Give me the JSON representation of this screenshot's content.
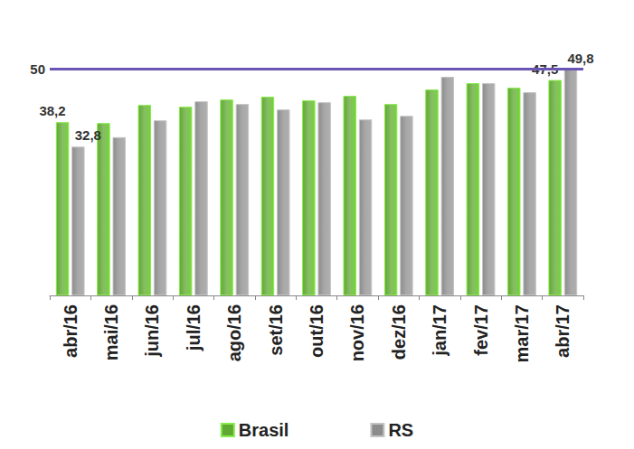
{
  "chart_data": {
    "type": "bar",
    "categories": [
      "abr/16",
      "mai/16",
      "jun/16",
      "jul/16",
      "ago/16",
      "set/16",
      "out/16",
      "nov/16",
      "dez/16",
      "jan/17",
      "fev/17",
      "mar/17",
      "abr/17"
    ],
    "series": [
      {
        "name": "Brasil",
        "color": "#5fa832",
        "values": [
          38.2,
          38.0,
          42.0,
          41.6,
          43.2,
          43.8,
          43.0,
          44.0,
          42.2,
          45.4,
          46.8,
          45.8,
          47.5
        ],
        "value_labels": [
          "38,2",
          null,
          null,
          null,
          null,
          null,
          null,
          null,
          null,
          null,
          null,
          null,
          "47,5"
        ]
      },
      {
        "name": "RS",
        "color": "#8c8c8c",
        "values": [
          32.8,
          34.9,
          38.6,
          42.8,
          42.2,
          41.0,
          42.6,
          38.8,
          39.6,
          48.2,
          46.8,
          44.8,
          49.8
        ],
        "value_labels": [
          "32,8",
          null,
          null,
          null,
          null,
          null,
          null,
          null,
          null,
          null,
          null,
          null,
          "49,8"
        ]
      }
    ],
    "reference_line": {
      "value": 50,
      "color": "#6a55b5"
    },
    "ylim": [
      0,
      50
    ],
    "yticks": [
      0,
      50
    ],
    "tick_labels": "x",
    "grid": false,
    "legend": "bottom",
    "data_labels": true
  }
}
